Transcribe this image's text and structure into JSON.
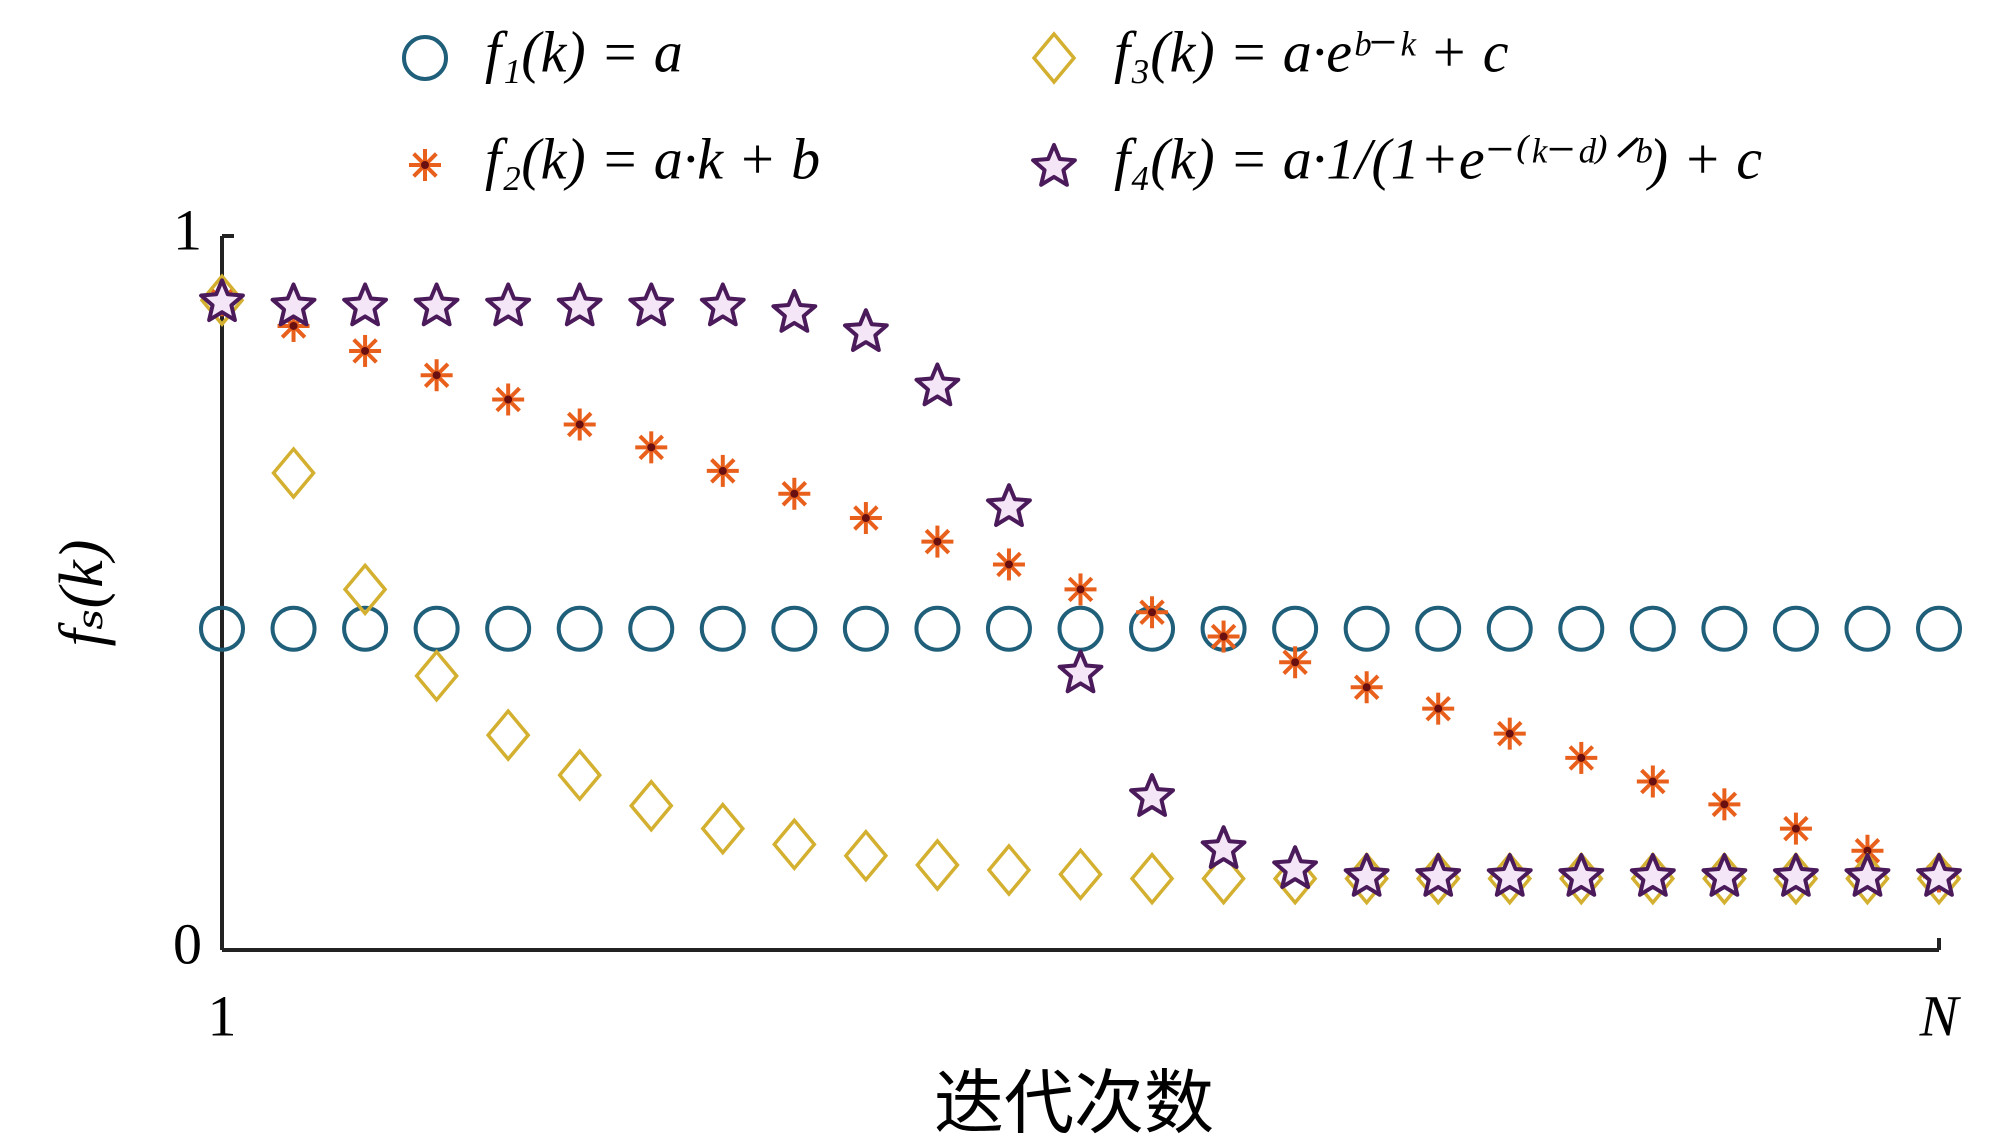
{
  "chart_data": {
    "type": "scatter",
    "x": [
      1,
      2,
      3,
      4,
      5,
      6,
      7,
      8,
      9,
      10,
      11,
      12,
      13,
      14,
      15,
      16,
      17,
      18,
      19,
      20,
      21,
      22,
      23,
      24,
      25
    ],
    "series": [
      {
        "name": "f₁(k) = a",
        "color": "#1f5f7a",
        "marker": "circle",
        "values": [
          0.45,
          0.45,
          0.45,
          0.45,
          0.45,
          0.45,
          0.45,
          0.45,
          0.45,
          0.45,
          0.45,
          0.45,
          0.45,
          0.45,
          0.45,
          0.45,
          0.45,
          0.45,
          0.45,
          0.45,
          0.45,
          0.45,
          0.45,
          0.45,
          0.45
        ]
      },
      {
        "name": "f₂(k) = a·k + b",
        "color": "#e8601c",
        "marker": "asterisk",
        "values": [
          0.91,
          0.874,
          0.839,
          0.805,
          0.771,
          0.736,
          0.704,
          0.671,
          0.639,
          0.605,
          0.572,
          0.54,
          0.505,
          0.473,
          0.439,
          0.403,
          0.368,
          0.338,
          0.303,
          0.269,
          0.236,
          0.204,
          0.17,
          0.139,
          0.103
        ]
      },
      {
        "name": "f₃(k) = a·eᵇ⁻ᵏ + c",
        "color": "#d4b030",
        "marker": "diamond",
        "values": [
          0.91,
          0.668,
          0.505,
          0.384,
          0.301,
          0.245,
          0.202,
          0.17,
          0.148,
          0.132,
          0.119,
          0.112,
          0.106,
          0.1,
          0.1,
          0.1,
          0.1,
          0.1,
          0.1,
          0.1,
          0.1,
          0.1,
          0.1,
          0.1,
          0.1
        ]
      },
      {
        "name": "f₄(k) = a·1/(1+e⁻⁽ᵏ⁻ᵈ⁾ᐟᵇ) + c",
        "color": "#4a1a5a",
        "marker": "star",
        "values": [
          0.91,
          0.904,
          0.904,
          0.904,
          0.904,
          0.904,
          0.904,
          0.904,
          0.895,
          0.868,
          0.792,
          0.623,
          0.39,
          0.217,
          0.144,
          0.116,
          0.105,
          0.105,
          0.105,
          0.105,
          0.105,
          0.105,
          0.105,
          0.105,
          0.105
        ]
      }
    ],
    "x_label": "迭代次数",
    "y_label": "fₛ(k)",
    "xlim": [
      1,
      25
    ],
    "xticks": [
      1,
      {
        "value": 25,
        "label": "N"
      }
    ],
    "ylim": [
      0,
      1
    ],
    "yticks": [
      0,
      1
    ],
    "grid": false
  }
}
